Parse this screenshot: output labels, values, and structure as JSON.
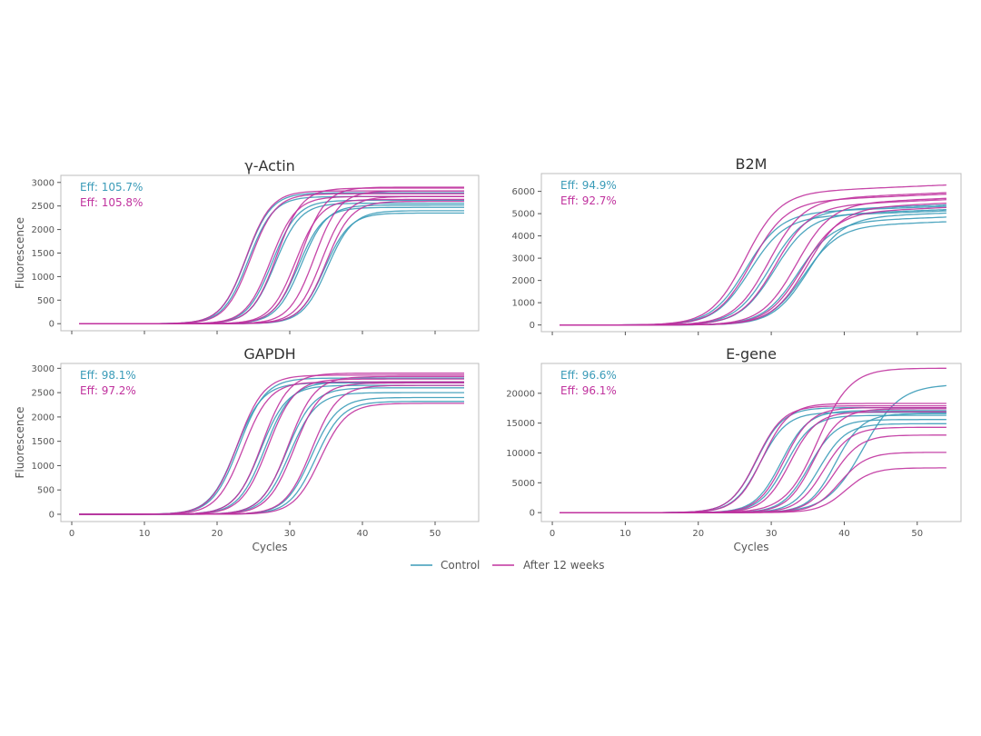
{
  "colors": {
    "control": "#3a9bb8",
    "after": "#c0329e",
    "frame": "#bcbcbc",
    "tick": "#555555"
  },
  "legend": {
    "position": "bottom-center",
    "items": [
      {
        "label": "Control",
        "color": "#3a9bb8"
      },
      {
        "label": "After 12 weeks",
        "color": "#c0329e"
      }
    ]
  },
  "chart_data": [
    {
      "type": "line",
      "title": "γ-Actin",
      "xlabel": "",
      "ylabel": "Fluorescence",
      "xlim": [
        -1.5,
        56
      ],
      "ylim": [
        -150,
        3150
      ],
      "xticks": [
        0,
        10,
        20,
        30,
        40,
        50
      ],
      "show_xtick_labels": false,
      "yticks": [
        0,
        500,
        1000,
        1500,
        2000,
        2500,
        3000
      ],
      "efficiency": {
        "control": "Eff: 105.7%",
        "after": "Eff: 105.8%"
      },
      "x_range": [
        1,
        54
      ],
      "control": [
        {
          "ct": 24.3,
          "plateau": 2700,
          "k": 0.58
        },
        {
          "ct": 24.0,
          "plateau": 2780,
          "k": 0.58
        },
        {
          "ct": 27.6,
          "plateau": 2620,
          "k": 0.58
        },
        {
          "ct": 28.0,
          "plateau": 2560,
          "k": 0.58
        },
        {
          "ct": 31.2,
          "plateau": 2470,
          "k": 0.58
        },
        {
          "ct": 31.6,
          "plateau": 2520,
          "k": 0.58
        },
        {
          "ct": 34.8,
          "plateau": 2350,
          "k": 0.58
        },
        {
          "ct": 35.2,
          "plateau": 2400,
          "k": 0.58
        }
      ],
      "after": [
        {
          "ct": 24.0,
          "plateau": 2820,
          "k": 0.58
        },
        {
          "ct": 24.6,
          "plateau": 2760,
          "k": 0.58
        },
        {
          "ct": 27.4,
          "plateau": 2700,
          "k": 0.58
        },
        {
          "ct": 28.2,
          "plateau": 2880,
          "k": 0.58
        },
        {
          "ct": 30.8,
          "plateau": 2640,
          "k": 0.58
        },
        {
          "ct": 31.5,
          "plateau": 2900,
          "k": 0.58
        },
        {
          "ct": 33.4,
          "plateau": 2820,
          "k": 0.58
        },
        {
          "ct": 34.4,
          "plateau": 2700,
          "k": 0.58
        },
        {
          "ct": 35.0,
          "plateau": 2600,
          "k": 0.58
        }
      ]
    },
    {
      "type": "line",
      "title": "B2M",
      "xlabel": "",
      "ylabel": "",
      "xlim": [
        -1.5,
        56
      ],
      "ylim": [
        -300,
        6800
      ],
      "xticks": [
        0,
        10,
        20,
        30,
        40,
        50
      ],
      "show_xtick_labels": false,
      "yticks": [
        0,
        1000,
        2000,
        3000,
        4000,
        5000,
        6000
      ],
      "efficiency": {
        "control": "Eff: 94.9%",
        "after": "Eff: 92.7%"
      },
      "x_range": [
        1,
        54
      ],
      "control": [
        {
          "ct": 26.5,
          "plateau": 5000,
          "k": 0.42,
          "drift": 12
        },
        {
          "ct": 27.0,
          "plateau": 4800,
          "k": 0.42,
          "drift": 12
        },
        {
          "ct": 29.8,
          "plateau": 5100,
          "k": 0.42,
          "drift": 12
        },
        {
          "ct": 30.4,
          "plateau": 4900,
          "k": 0.42,
          "drift": 12
        },
        {
          "ct": 33.6,
          "plateau": 4600,
          "k": 0.42,
          "drift": 12
        },
        {
          "ct": 34.4,
          "plateau": 4400,
          "k": 0.42,
          "drift": 12
        },
        {
          "ct": 35.0,
          "plateau": 4800,
          "k": 0.42,
          "drift": 12
        }
      ],
      "after": [
        {
          "ct": 26.4,
          "plateau": 5900,
          "k": 0.42,
          "drift": 14
        },
        {
          "ct": 27.2,
          "plateau": 5500,
          "k": 0.42,
          "drift": 14
        },
        {
          "ct": 29.6,
          "plateau": 5600,
          "k": 0.42,
          "drift": 14
        },
        {
          "ct": 30.5,
          "plateau": 5300,
          "k": 0.42,
          "drift": 14
        },
        {
          "ct": 33.4,
          "plateau": 5400,
          "k": 0.42,
          "drift": 14
        },
        {
          "ct": 34.2,
          "plateau": 5000,
          "k": 0.42,
          "drift": 14
        },
        {
          "ct": 34.8,
          "plateau": 5200,
          "k": 0.42,
          "drift": 14
        }
      ]
    },
    {
      "type": "line",
      "title": "GAPDH",
      "xlabel": "Cycles",
      "ylabel": "Fluorescence",
      "xlim": [
        -1.5,
        56
      ],
      "ylim": [
        -150,
        3100
      ],
      "xticks": [
        0,
        10,
        20,
        30,
        40,
        50
      ],
      "show_xtick_labels": true,
      "yticks": [
        0,
        500,
        1000,
        1500,
        2000,
        2500,
        3000
      ],
      "efficiency": {
        "control": "Eff: 98.1%",
        "after": "Eff: 97.2%"
      },
      "x_range": [
        1,
        54
      ],
      "control": [
        {
          "ct": 22.6,
          "plateau": 2700,
          "k": 0.55
        },
        {
          "ct": 23.0,
          "plateau": 2800,
          "k": 0.55
        },
        {
          "ct": 26.0,
          "plateau": 2650,
          "k": 0.55
        },
        {
          "ct": 26.6,
          "plateau": 2720,
          "k": 0.55
        },
        {
          "ct": 29.6,
          "plateau": 2600,
          "k": 0.55
        },
        {
          "ct": 30.0,
          "plateau": 2500,
          "k": 0.55
        },
        {
          "ct": 33.0,
          "plateau": 2400,
          "k": 0.55
        },
        {
          "ct": 33.6,
          "plateau": 2320,
          "k": 0.55
        }
      ],
      "after": [
        {
          "ct": 22.8,
          "plateau": 2860,
          "k": 0.55
        },
        {
          "ct": 23.6,
          "plateau": 2720,
          "k": 0.55
        },
        {
          "ct": 26.2,
          "plateau": 2900,
          "k": 0.55
        },
        {
          "ct": 27.0,
          "plateau": 2780,
          "k": 0.55
        },
        {
          "ct": 29.8,
          "plateau": 2830,
          "k": 0.55
        },
        {
          "ct": 30.6,
          "plateau": 2700,
          "k": 0.55
        },
        {
          "ct": 33.0,
          "plateau": 2650,
          "k": 0.55
        },
        {
          "ct": 34.2,
          "plateau": 2280,
          "k": 0.55
        }
      ]
    },
    {
      "type": "line",
      "title": "E-gene",
      "xlabel": "Cycles",
      "ylabel": "",
      "xlim": [
        -1.5,
        56
      ],
      "ylim": [
        -1500,
        25000
      ],
      "xticks": [
        0,
        10,
        20,
        30,
        40,
        50
      ],
      "show_xtick_labels": true,
      "yticks": [
        0,
        5000,
        10000,
        15000,
        20000
      ],
      "efficiency": {
        "control": "Eff: 96.6%",
        "after": "Eff: 96.1%"
      },
      "x_range": [
        1,
        54
      ],
      "control": [
        {
          "ct": 28.0,
          "plateau": 17600,
          "k": 0.55
        },
        {
          "ct": 28.5,
          "plateau": 16800,
          "k": 0.55
        },
        {
          "ct": 31.4,
          "plateau": 17100,
          "k": 0.55
        },
        {
          "ct": 32.0,
          "plateau": 16300,
          "k": 0.55
        },
        {
          "ct": 35.2,
          "plateau": 15600,
          "k": 0.55
        },
        {
          "ct": 36.6,
          "plateau": 14900,
          "k": 0.55
        },
        {
          "ct": 38.8,
          "plateau": 16600,
          "k": 0.55
        },
        {
          "ct": 42.6,
          "plateau": 21500,
          "k": 0.4
        }
      ],
      "after": [
        {
          "ct": 28.0,
          "plateau": 17900,
          "k": 0.55
        },
        {
          "ct": 28.8,
          "plateau": 18300,
          "k": 0.55
        },
        {
          "ct": 31.8,
          "plateau": 17600,
          "k": 0.55
        },
        {
          "ct": 32.6,
          "plateau": 16900,
          "k": 0.55
        },
        {
          "ct": 35.8,
          "plateau": 17400,
          "k": 0.55
        },
        {
          "ct": 36.4,
          "plateau": 24200,
          "k": 0.45
        },
        {
          "ct": 38.6,
          "plateau": 13000,
          "k": 0.55
        },
        {
          "ct": 39.4,
          "plateau": 10100,
          "k": 0.55
        },
        {
          "ct": 40.2,
          "plateau": 7500,
          "k": 0.55
        },
        {
          "ct": 37.2,
          "plateau": 14300,
          "k": 0.55
        }
      ]
    }
  ]
}
